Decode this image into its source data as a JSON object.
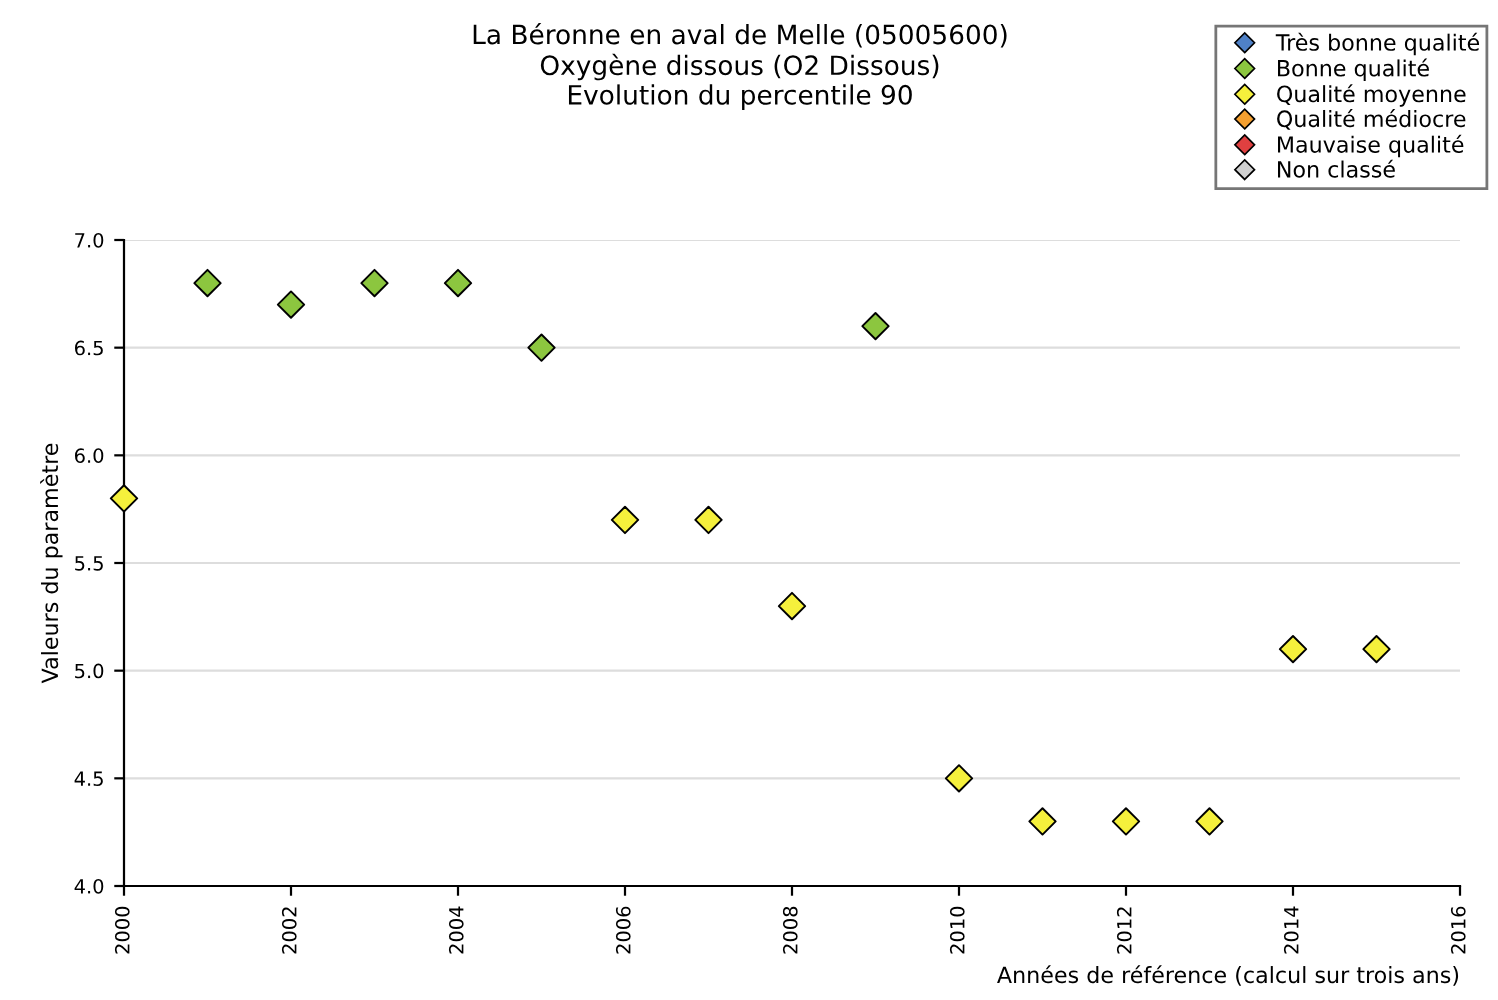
{
  "chart_data": {
    "type": "scatter",
    "title": "La Béronne en aval de Melle (05005600)\nOxygène dissous (O2 Dissous)\nEvolution du percentile 90",
    "xlabel": "Années de référence (calcul sur trois ans)",
    "ylabel": "Valeurs du paramètre",
    "xlim": [
      2000,
      2016
    ],
    "xticks": [
      2000,
      2002,
      2004,
      2006,
      2008,
      2010,
      2012,
      2014,
      2016
    ],
    "ylim": [
      4.0,
      7.0
    ],
    "yticks": [
      {
        "value": 4.0,
        "label": "4.0"
      },
      {
        "value": 4.5,
        "label": "4.5"
      },
      {
        "value": 5.0,
        "label": "5.0"
      },
      {
        "value": 5.5,
        "label": "5.5"
      },
      {
        "value": 6.0,
        "label": "6.0"
      },
      {
        "value": 6.5,
        "label": "6.5"
      },
      {
        "value": 7.0,
        "label": "7.0"
      }
    ],
    "grid": "y",
    "legend": "top right",
    "marker": "diamond",
    "series": [
      {
        "name": "Très bonne qualité",
        "color": "#4f81c7"
      },
      {
        "name": "Bonne qualité",
        "color": "#8cc63f",
        "x": [
          2001,
          2002,
          2003,
          2004,
          2005,
          2009
        ],
        "values": [
          6.8,
          6.7,
          6.8,
          6.8,
          6.5,
          6.6
        ]
      },
      {
        "name": "Qualité moyenne",
        "color": "#f5f03c",
        "x": [
          2000,
          2006,
          2007,
          2008,
          2010,
          2011,
          2012,
          2013,
          2014,
          2015
        ],
        "values": [
          5.8,
          5.7,
          5.7,
          5.3,
          4.5,
          4.3,
          4.3,
          4.3,
          5.1,
          5.1
        ]
      },
      {
        "name": "Qualité médiocre",
        "color": "#f5a030"
      },
      {
        "name": "Mauvaise qualité",
        "color": "#e04040"
      },
      {
        "name": "Non classé",
        "color": "#d0d0d0"
      }
    ]
  }
}
